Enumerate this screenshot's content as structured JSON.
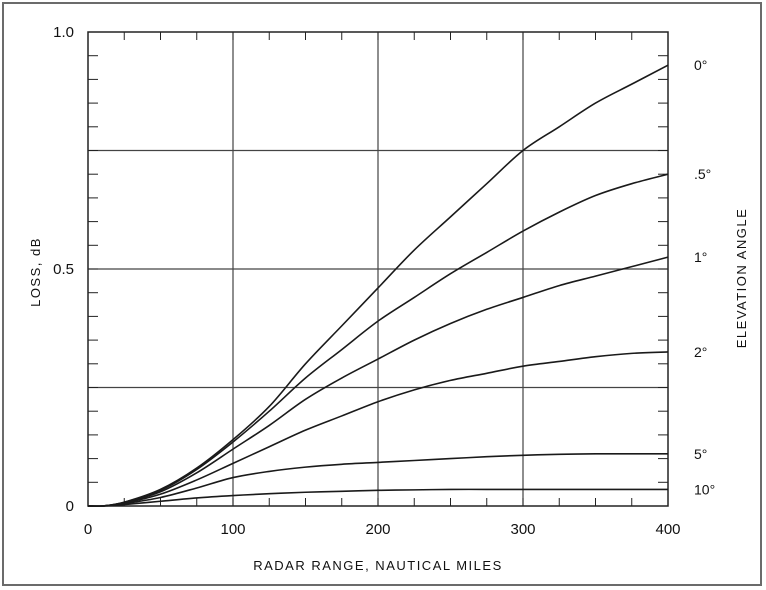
{
  "chart_data": {
    "type": "line",
    "xlabel": "RADAR RANGE, NAUTICAL MILES",
    "ylabel": "LOSS, dB",
    "right_label": "ELEVATION ANGLE",
    "xlim": [
      0,
      400
    ],
    "ylim": [
      0,
      1.0
    ],
    "x_ticks": [
      0,
      100,
      200,
      300,
      400
    ],
    "x_tick_labels": [
      "0",
      "100",
      "200",
      "300",
      "400"
    ],
    "y_ticks": [
      0,
      0.5,
      1.0
    ],
    "y_tick_labels": [
      "0",
      "0.5",
      "1.0"
    ],
    "grid": true,
    "x": [
      0,
      10,
      25,
      50,
      75,
      100,
      125,
      150,
      175,
      200,
      225,
      250,
      275,
      300,
      325,
      350,
      375,
      400
    ],
    "series": [
      {
        "name": "0°",
        "values": [
          0,
          0,
          0.008,
          0.035,
          0.08,
          0.14,
          0.21,
          0.3,
          0.38,
          0.46,
          0.54,
          0.61,
          0.68,
          0.75,
          0.8,
          0.85,
          0.89,
          0.93
        ]
      },
      {
        "name": ".5°",
        "values": [
          0,
          0,
          0.008,
          0.033,
          0.077,
          0.135,
          0.2,
          0.27,
          0.33,
          0.39,
          0.44,
          0.49,
          0.535,
          0.58,
          0.62,
          0.655,
          0.68,
          0.7
        ]
      },
      {
        "name": "1°",
        "values": [
          0,
          0,
          0.007,
          0.03,
          0.07,
          0.12,
          0.17,
          0.225,
          0.27,
          0.31,
          0.35,
          0.385,
          0.415,
          0.44,
          0.465,
          0.485,
          0.505,
          0.525
        ]
      },
      {
        "name": "2°",
        "values": [
          0,
          0,
          0.006,
          0.025,
          0.055,
          0.09,
          0.125,
          0.16,
          0.19,
          0.22,
          0.245,
          0.265,
          0.28,
          0.295,
          0.305,
          0.315,
          0.322,
          0.325
        ]
      },
      {
        "name": "5°",
        "values": [
          0,
          0,
          0.005,
          0.018,
          0.038,
          0.06,
          0.073,
          0.082,
          0.088,
          0.092,
          0.096,
          0.1,
          0.104,
          0.107,
          0.109,
          0.11,
          0.11,
          0.11
        ]
      },
      {
        "name": "10°",
        "values": [
          0,
          0,
          0.003,
          0.01,
          0.017,
          0.022,
          0.026,
          0.029,
          0.031,
          0.033,
          0.034,
          0.035,
          0.035,
          0.035,
          0.035,
          0.035,
          0.035,
          0.035
        ]
      }
    ]
  }
}
